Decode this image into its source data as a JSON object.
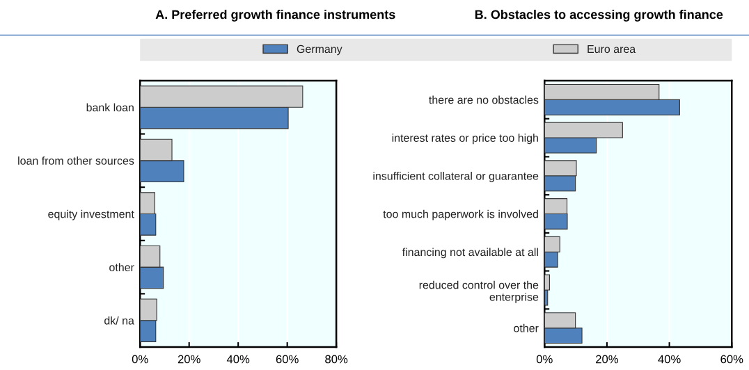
{
  "chart_data": [
    {
      "type": "bar",
      "orientation": "horizontal",
      "title": "A. Preferred growth finance instruments",
      "categories": [
        "bank loan",
        "loan from other sources",
        "equity investment",
        "other",
        "dk/ na"
      ],
      "series": [
        {
          "name": "Germany",
          "color": "#4f81bd",
          "values": [
            60.4,
            17.8,
            6.4,
            9.5,
            6.4
          ]
        },
        {
          "name": "Euro area",
          "color": "#cccccc",
          "values": [
            66.3,
            13.0,
            6.0,
            8.1,
            6.8
          ]
        }
      ],
      "xlim": [
        0,
        80
      ],
      "xticks": [
        {
          "value": 0,
          "label": "0%"
        },
        {
          "value": 20,
          "label": "20%"
        },
        {
          "value": 40,
          "label": "40%"
        },
        {
          "value": 60,
          "label": "60%"
        },
        {
          "value": 80,
          "label": "80%"
        }
      ],
      "grid": "x",
      "legend": "top"
    },
    {
      "type": "bar",
      "orientation": "horizontal",
      "title": "B. Obstacles to accessing growth finance",
      "categories": [
        "there are no obstacles",
        "interest rates or price too high",
        "insufficient collateral or guarantee",
        "too much paperwork is involved",
        "financing not available at all",
        "reduced control over the\nenterprise",
        "other"
      ],
      "series": [
        {
          "color": "#4f81bd",
          "values": [
            43.3,
            16.6,
            9.9,
            7.3,
            4.2,
            1.0,
            12.0
          ]
        },
        {
          "color": "#cccccc",
          "values": [
            36.7,
            25.0,
            10.2,
            7.2,
            4.9,
            1.6,
            9.9
          ]
        }
      ],
      "xlim": [
        0,
        60
      ],
      "xticks": [
        {
          "value": 0,
          "label": "0%"
        },
        {
          "value": 20,
          "label": "20%"
        },
        {
          "value": 40,
          "label": "40%"
        },
        {
          "value": 60,
          "label": "60%"
        }
      ],
      "grid": "x"
    }
  ]
}
